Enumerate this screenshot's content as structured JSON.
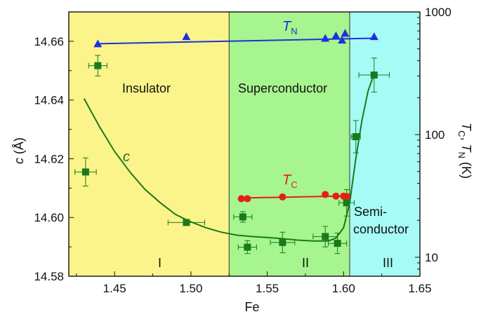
{
  "chart_data": {
    "type": "scatter",
    "x_axis": {
      "label": "Fe",
      "range": [
        1.42,
        1.65
      ],
      "ticks": [
        1.45,
        1.5,
        1.55,
        1.6,
        1.65
      ],
      "tick_labels": [
        "1.45",
        "1.50",
        "1.55",
        "1.60",
        "1.65"
      ]
    },
    "y_left": {
      "label_main": "c",
      "label_unit": " (Å)",
      "range": [
        14.58,
        14.67
      ],
      "ticks": [
        14.58,
        14.6,
        14.62,
        14.64,
        14.66
      ],
      "tick_labels": [
        "14.58",
        "14.60",
        "14.62",
        "14.64",
        "14.66"
      ]
    },
    "y_right": {
      "scale": "log",
      "range": [
        7,
        1000
      ],
      "ticks": [
        10,
        100,
        1000
      ],
      "tick_labels": [
        "10",
        "100",
        "1000"
      ],
      "label_parts": [
        {
          "t": "T",
          "italic": true,
          "sub": false
        },
        {
          "t": "C",
          "italic": false,
          "sub": true
        },
        {
          "t": ", ",
          "italic": false,
          "sub": false
        },
        {
          "t": "T",
          "italic": true,
          "sub": false
        },
        {
          "t": "N",
          "italic": false,
          "sub": true
        },
        {
          "t": " (K)",
          "italic": false,
          "sub": false
        }
      ]
    },
    "regions": [
      {
        "x_start": 1.42,
        "x_end": 1.525,
        "color": "#fbf48a",
        "name": "Insulator",
        "roman": "I"
      },
      {
        "x_start": 1.525,
        "x_end": 1.604,
        "color": "#a6f58e",
        "name": "Superconductor",
        "roman": "II"
      },
      {
        "x_start": 1.604,
        "x_end": 1.65,
        "color": "#a6fbf6",
        "name_line1": "Semi-",
        "name_line2": "conductor",
        "roman": "III"
      }
    ],
    "series": [
      {
        "name": "c",
        "axis": "left",
        "color": "#1a7a1a",
        "marker": "square",
        "points": [
          {
            "x": 1.439,
            "y": 14.6517,
            "xerr": 0.006,
            "yerr": 0.0035
          },
          {
            "x": 1.431,
            "y": 14.6155,
            "xerr": 0.007,
            "yerr": 0.0048
          },
          {
            "x": 1.497,
            "y": 14.5983,
            "xerr": 0.012,
            "yerr": 0.0008
          },
          {
            "x": 1.534,
            "y": 14.6002,
            "xerr": 0.006,
            "yerr": 0.0018
          },
          {
            "x": 1.537,
            "y": 14.5899,
            "xerr": 0.006,
            "yerr": 0.0022
          },
          {
            "x": 1.56,
            "y": 14.5915,
            "xerr": 0.008,
            "yerr": 0.0035
          },
          {
            "x": 1.588,
            "y": 14.5935,
            "xerr": 0.008,
            "yerr": 0.0035
          },
          {
            "x": 1.596,
            "y": 14.5912,
            "xerr": 0.006,
            "yerr": 0.0035
          },
          {
            "x": 1.602,
            "y": 14.605,
            "xerr": 0.005,
            "yerr": 0.0045
          },
          {
            "x": 1.608,
            "y": 14.6275,
            "xerr": 0.003,
            "yerr": 0.0055
          },
          {
            "x": 1.62,
            "y": 14.6485,
            "xerr": 0.01,
            "yerr": 0.0058
          }
        ],
        "fit_curve": [
          [
            1.43,
            14.6405
          ],
          [
            1.44,
            14.631
          ],
          [
            1.45,
            14.6225
          ],
          [
            1.46,
            14.6155
          ],
          [
            1.47,
            14.6095
          ],
          [
            1.48,
            14.605
          ],
          [
            1.49,
            14.601
          ],
          [
            1.5,
            14.5985
          ],
          [
            1.51,
            14.5965
          ],
          [
            1.52,
            14.595
          ],
          [
            1.53,
            14.594
          ],
          [
            1.54,
            14.5935
          ],
          [
            1.55,
            14.5932
          ],
          [
            1.56,
            14.5928
          ],
          [
            1.57,
            14.5923
          ],
          [
            1.58,
            14.592
          ],
          [
            1.59,
            14.592
          ],
          [
            1.595,
            14.593
          ],
          [
            1.6,
            14.5965
          ],
          [
            1.604,
            14.605
          ],
          [
            1.608,
            14.62
          ],
          [
            1.612,
            14.633
          ],
          [
            1.616,
            14.643
          ],
          [
            1.62,
            14.649
          ]
        ]
      },
      {
        "name": "T",
        "name_sub": "N",
        "axis": "right",
        "color": "#1f2fe0",
        "marker": "triangle",
        "points": [
          {
            "x": 1.439,
            "y": 550
          },
          {
            "x": 1.497,
            "y": 630
          },
          {
            "x": 1.588,
            "y": 610
          },
          {
            "x": 1.595,
            "y": 640
          },
          {
            "x": 1.599,
            "y": 590
          },
          {
            "x": 1.601,
            "y": 670
          },
          {
            "x": 1.62,
            "y": 630
          }
        ],
        "line": [
          [
            1.439,
            550
          ],
          [
            1.62,
            610
          ]
        ]
      },
      {
        "name": "T",
        "name_sub": "C",
        "axis": "right",
        "color": "#e81c1c",
        "marker": "circle",
        "points": [
          {
            "x": 1.533,
            "y": 30.0
          },
          {
            "x": 1.537,
            "y": 30.0
          },
          {
            "x": 1.56,
            "y": 31.0
          },
          {
            "x": 1.588,
            "y": 32.5
          },
          {
            "x": 1.595,
            "y": 31.5
          },
          {
            "x": 1.6,
            "y": 31.5
          },
          {
            "x": 1.602,
            "y": 31.3
          }
        ],
        "line": [
          [
            1.533,
            30.4
          ],
          [
            1.602,
            31.6
          ]
        ]
      }
    ]
  }
}
